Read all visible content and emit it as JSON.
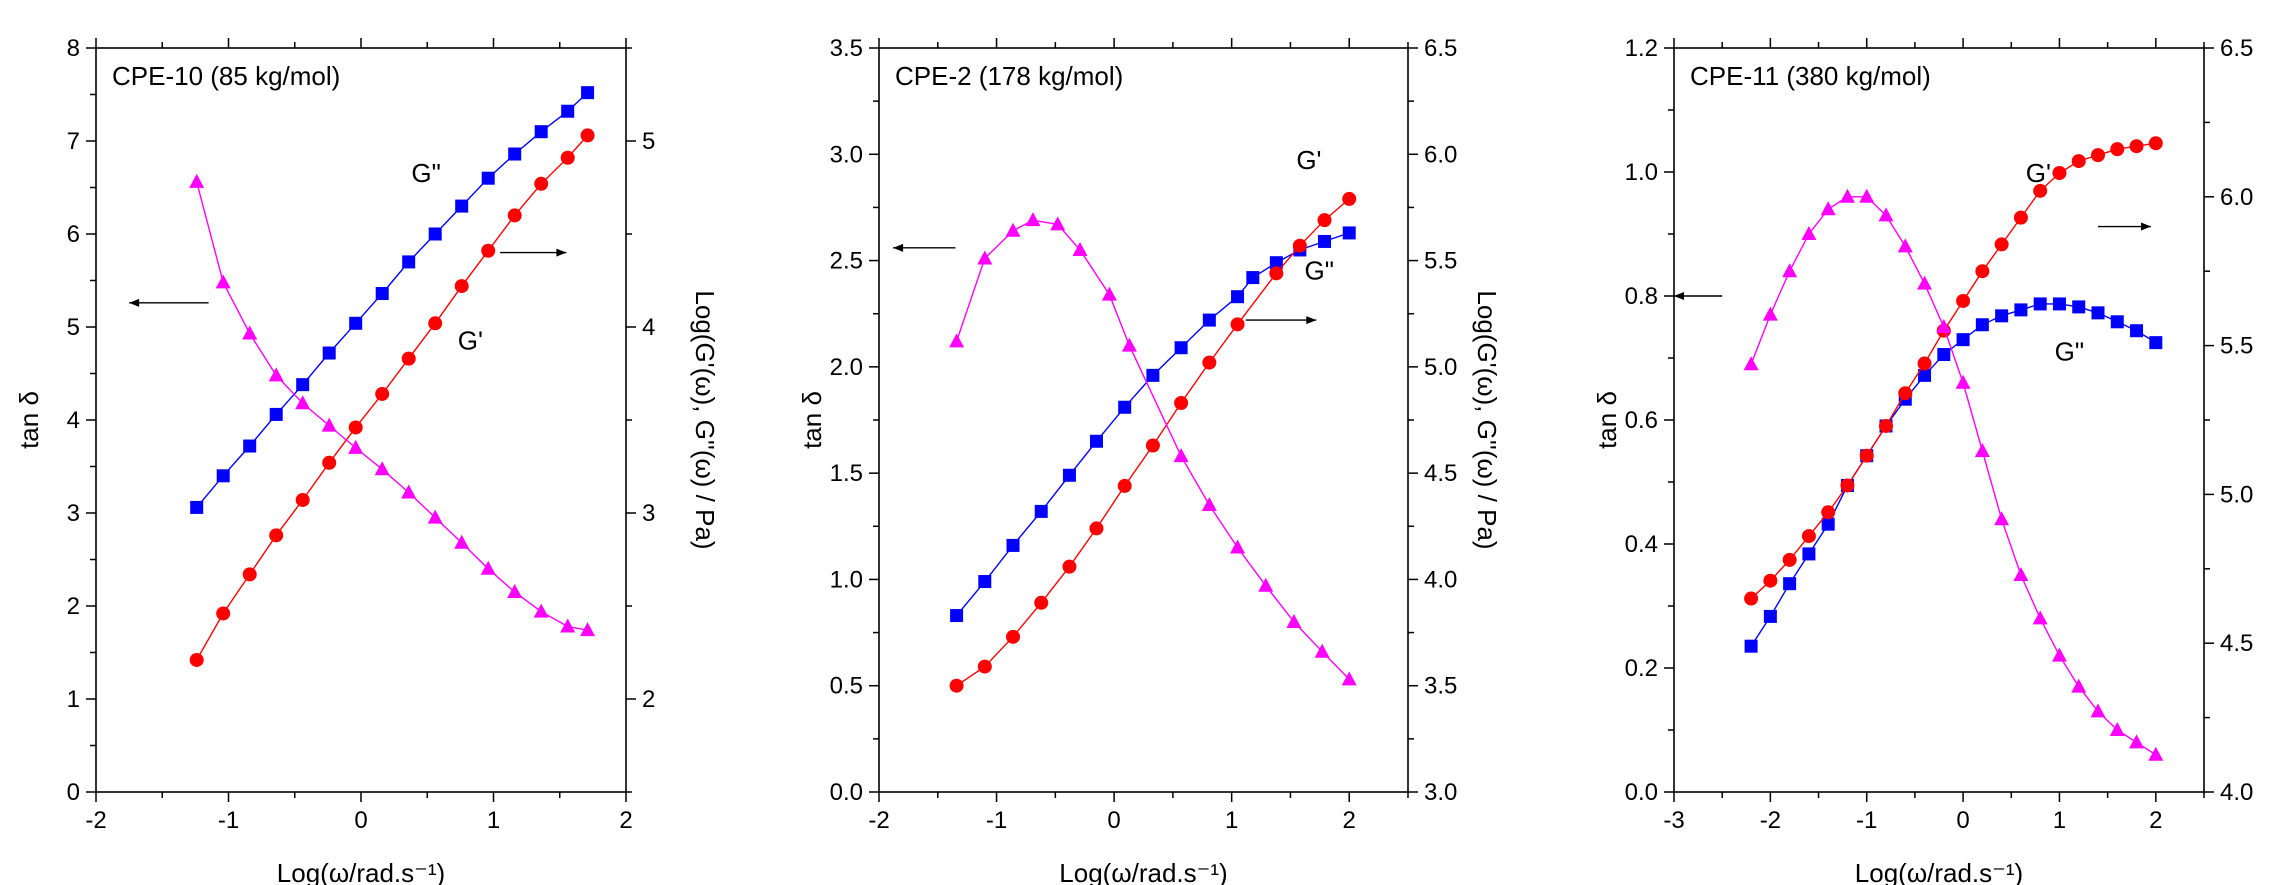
{
  "chart_data": [
    {
      "type": "line",
      "title": "CPE-10 (85 kg/mol)",
      "xlabel": "Log(ω/rad.s⁻¹)",
      "ylabel_left": "tan δ",
      "ylabel_right": "Log(G'(ω), G''(ω) / Pa)",
      "xlim": [
        -2,
        2
      ],
      "ylim_left": [
        0,
        8
      ],
      "ylim_right": [
        1.5,
        5.5
      ],
      "xticks": [
        "-2",
        "-1",
        "0",
        "1",
        "2"
      ],
      "yticks_left": [
        "0",
        "1",
        "2",
        "3",
        "4",
        "5",
        "6",
        "7",
        "8"
      ],
      "yticks_right": [
        "2",
        "3",
        "4",
        "5"
      ],
      "series": [
        {
          "name": "G\"",
          "axis": "right",
          "color": "#0000ff",
          "marker": "square",
          "x": [
            -1.24,
            -1.04,
            -0.84,
            -0.64,
            -0.44,
            -0.24,
            -0.04,
            0.16,
            0.36,
            0.56,
            0.76,
            0.96,
            1.16,
            1.36,
            1.56,
            1.71
          ],
          "y": [
            3.03,
            3.2,
            3.36,
            3.53,
            3.69,
            3.86,
            4.02,
            4.18,
            4.35,
            4.5,
            4.65,
            4.8,
            4.93,
            5.05,
            5.16,
            5.26
          ]
        },
        {
          "name": "G'",
          "axis": "right",
          "color": "#ff0000",
          "marker": "circle",
          "x": [
            -1.24,
            -1.04,
            -0.84,
            -0.64,
            -0.44,
            -0.24,
            -0.04,
            0.16,
            0.36,
            0.56,
            0.76,
            0.96,
            1.16,
            1.36,
            1.56,
            1.71
          ],
          "y": [
            2.21,
            2.46,
            2.67,
            2.88,
            3.07,
            3.27,
            3.46,
            3.64,
            3.83,
            4.02,
            4.22,
            4.41,
            4.6,
            4.77,
            4.91,
            5.03
          ]
        },
        {
          "name": "tan δ",
          "axis": "left",
          "color": "#ff00ff",
          "marker": "triangle",
          "x": [
            -1.24,
            -1.04,
            -0.84,
            -0.64,
            -0.44,
            -0.24,
            -0.04,
            0.16,
            0.36,
            0.56,
            0.76,
            0.96,
            1.16,
            1.36,
            1.56,
            1.71
          ],
          "y": [
            6.56,
            5.48,
            4.93,
            4.48,
            4.18,
            3.94,
            3.7,
            3.47,
            3.22,
            2.95,
            2.68,
            2.4,
            2.15,
            1.94,
            1.78,
            1.74
          ]
        }
      ],
      "annotations": [
        {
          "text": "G\"",
          "x": 0.38,
          "y": 4.78
        },
        {
          "text": "G'",
          "x": 0.73,
          "y": 3.88
        }
      ],
      "arrows": [
        {
          "from_x": -1.15,
          "to_x": -1.75,
          "y": 5.26,
          "axis": "left",
          "direction": "left"
        },
        {
          "from_x": 1.05,
          "to_x": 1.55,
          "y": 4.4,
          "axis": "right",
          "direction": "right"
        }
      ]
    },
    {
      "type": "line",
      "title": "CPE-2 (178 kg/mol)",
      "xlabel": "Log(ω/rad.s⁻¹)",
      "ylabel_left": "tan δ",
      "ylabel_right": "Log(G'(ω), G''(ω) / Pa)",
      "xlim": [
        -2,
        2.5
      ],
      "ylim_left": [
        0,
        3.5
      ],
      "ylim_right": [
        3.0,
        6.5
      ],
      "xticks": [
        "-2",
        "-1",
        "0",
        "1",
        "2"
      ],
      "yticks_left": [
        "0.0",
        "0.5",
        "1.0",
        "1.5",
        "2.0",
        "2.5",
        "3.0",
        "3.5"
      ],
      "yticks_right": [
        "3.0",
        "3.5",
        "4.0",
        "4.5",
        "5.0",
        "5.5",
        "6.0",
        "6.5"
      ],
      "series": [
        {
          "name": "G\"",
          "axis": "right",
          "color": "#0000ff",
          "marker": "square",
          "x": [
            -1.34,
            -1.1,
            -0.86,
            -0.62,
            -0.38,
            -0.15,
            0.09,
            0.33,
            0.57,
            0.81,
            1.05,
            1.18,
            1.38,
            1.58,
            1.79,
            2.0
          ],
          "y": [
            3.83,
            3.99,
            4.16,
            4.32,
            4.49,
            4.65,
            4.81,
            4.96,
            5.09,
            5.22,
            5.33,
            5.42,
            5.49,
            5.55,
            5.59,
            5.63
          ]
        },
        {
          "name": "G'",
          "axis": "right",
          "color": "#ff0000",
          "marker": "circle",
          "x": [
            -1.34,
            -1.1,
            -0.86,
            -0.62,
            -0.38,
            -0.15,
            0.09,
            0.33,
            0.57,
            0.81,
            1.05,
            1.38,
            1.58,
            1.79,
            2.0
          ],
          "y": [
            3.5,
            3.59,
            3.73,
            3.89,
            4.06,
            4.24,
            4.44,
            4.63,
            4.83,
            5.02,
            5.2,
            5.44,
            5.57,
            5.69,
            5.79
          ]
        },
        {
          "name": "tan δ",
          "axis": "left",
          "color": "#ff00ff",
          "marker": "triangle",
          "x": [
            -1.34,
            -1.1,
            -0.86,
            -0.69,
            -0.48,
            -0.29,
            -0.04,
            0.13,
            0.57,
            0.81,
            1.05,
            1.29,
            1.53,
            1.77,
            2.0
          ],
          "y": [
            2.12,
            2.51,
            2.64,
            2.69,
            2.67,
            2.55,
            2.34,
            2.1,
            1.58,
            1.35,
            1.15,
            0.97,
            0.8,
            0.66,
            0.53
          ]
        }
      ],
      "annotations": [
        {
          "text": "G'",
          "x": 1.55,
          "y": 5.93
        },
        {
          "text": "G\"",
          "x": 1.62,
          "y": 5.41
        }
      ],
      "arrows": [
        {
          "from_x": -1.35,
          "to_x": -1.88,
          "y": 2.56,
          "axis": "left",
          "direction": "left"
        },
        {
          "from_x": 1.12,
          "to_x": 1.72,
          "y": 5.22,
          "axis": "right",
          "direction": "right"
        }
      ]
    },
    {
      "type": "line",
      "title": "CPE-11 (380 kg/mol)",
      "xlabel": "Log(ω/rad.s⁻¹)",
      "ylabel_left": "tan δ",
      "ylabel_right": "",
      "xlim": [
        -3,
        2.5
      ],
      "ylim_left": [
        0,
        1.2
      ],
      "ylim_right": [
        4.0,
        6.5
      ],
      "xticks": [
        "-3",
        "-2",
        "-1",
        "0",
        "1",
        "2"
      ],
      "yticks_left": [
        "0.0",
        "0.2",
        "0.4",
        "0.6",
        "0.8",
        "1.0",
        "1.2"
      ],
      "yticks_right": [
        "4.0",
        "4.5",
        "5.0",
        "5.5",
        "6.0",
        "6.5"
      ],
      "series": [
        {
          "name": "G\"",
          "axis": "right",
          "color": "#0000ff",
          "marker": "square",
          "x": [
            -2.2,
            -2.0,
            -1.8,
            -1.6,
            -1.4,
            -1.2,
            -1.0,
            -0.8,
            -0.6,
            -0.4,
            -0.2,
            0.0,
            0.2,
            0.4,
            0.6,
            0.8,
            1.0,
            1.2,
            1.4,
            1.6,
            1.8,
            2.0
          ],
          "y": [
            4.49,
            4.59,
            4.7,
            4.8,
            4.9,
            5.03,
            5.13,
            5.23,
            5.32,
            5.4,
            5.47,
            5.52,
            5.57,
            5.6,
            5.62,
            5.64,
            5.64,
            5.63,
            5.61,
            5.58,
            5.55,
            5.51
          ]
        },
        {
          "name": "G'",
          "axis": "right",
          "color": "#ff0000",
          "marker": "circle",
          "x": [
            -2.2,
            -2.0,
            -1.8,
            -1.6,
            -1.4,
            -1.2,
            -1.0,
            -0.8,
            -0.6,
            -0.4,
            -0.2,
            0.0,
            0.2,
            0.4,
            0.6,
            0.8,
            1.0,
            1.2,
            1.4,
            1.6,
            1.8,
            2.0
          ],
          "y": [
            4.65,
            4.71,
            4.78,
            4.86,
            4.94,
            5.03,
            5.13,
            5.23,
            5.34,
            5.44,
            5.55,
            5.65,
            5.75,
            5.84,
            5.93,
            6.02,
            6.08,
            6.12,
            6.14,
            6.16,
            6.17,
            6.18
          ]
        },
        {
          "name": "tan δ",
          "axis": "left",
          "color": "#ff00ff",
          "marker": "triangle",
          "x": [
            -2.2,
            -2.0,
            -1.8,
            -1.6,
            -1.4,
            -1.2,
            -1.0,
            -0.8,
            -0.6,
            -0.4,
            -0.2,
            0.0,
            0.2,
            0.4,
            0.6,
            0.8,
            1.0,
            1.2,
            1.4,
            1.6,
            1.8,
            2.0
          ],
          "y": [
            0.69,
            0.77,
            0.84,
            0.9,
            0.94,
            0.96,
            0.96,
            0.93,
            0.88,
            0.82,
            0.75,
            0.66,
            0.55,
            0.44,
            0.35,
            0.28,
            0.22,
            0.17,
            0.13,
            0.1,
            0.08,
            0.06
          ]
        }
      ],
      "annotations": [
        {
          "text": "G'",
          "x": 0.65,
          "y": 6.05
        },
        {
          "text": "G\"",
          "x": 0.95,
          "y": 5.45
        }
      ],
      "arrows": [
        {
          "from_x": -2.5,
          "to_x": -3.0,
          "y": 0.8,
          "axis": "left",
          "direction": "left"
        },
        {
          "from_x": 1.4,
          "to_x": 1.95,
          "y": 5.9,
          "axis": "right",
          "direction": "right"
        }
      ]
    }
  ]
}
